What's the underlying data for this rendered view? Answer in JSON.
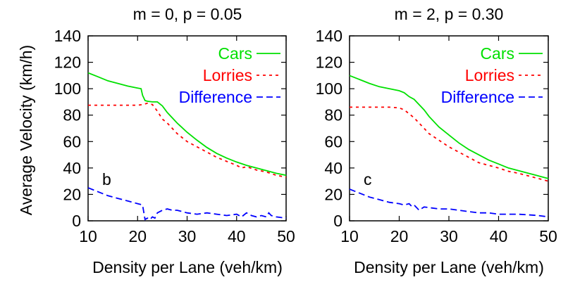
{
  "chart_data": [
    {
      "type": "line",
      "title": "m = 0, p = 0.05",
      "panel_label": "b",
      "xlabel": "Density per Lane (veh/km)",
      "ylabel": "Average Velocity (km/h)",
      "xlim": [
        10,
        50
      ],
      "ylim": [
        0,
        140
      ],
      "xticks": [
        "10",
        "20",
        "30",
        "40",
        "50"
      ],
      "yticks": [
        "0",
        "20",
        "40",
        "60",
        "80",
        "100",
        "120",
        "140"
      ],
      "grid": false,
      "legend_position": "top-right",
      "series": [
        {
          "name": "Cars",
          "color": "#00e000",
          "dash": "solid",
          "points": [
            [
              10,
              112
            ],
            [
              12,
              109
            ],
            [
              14,
              106
            ],
            [
              16,
              104
            ],
            [
              18,
              102
            ],
            [
              20,
              100.5
            ],
            [
              20.7,
              100
            ],
            [
              21,
              95
            ],
            [
              21.5,
              91
            ],
            [
              22,
              90.5
            ],
            [
              23,
              90
            ],
            [
              24,
              90
            ],
            [
              25,
              87
            ],
            [
              26,
              82
            ],
            [
              28,
              74
            ],
            [
              30,
              67
            ],
            [
              32,
              61
            ],
            [
              34,
              55.5
            ],
            [
              36,
              51
            ],
            [
              38,
              47.5
            ],
            [
              40,
              44.5
            ],
            [
              42,
              42
            ],
            [
              44,
              40
            ],
            [
              46,
              38
            ],
            [
              48,
              36
            ],
            [
              50,
              34.5
            ]
          ]
        },
        {
          "name": "Lorries",
          "color": "#ff0000",
          "dash": "dotted",
          "points": [
            [
              10,
              87.5
            ],
            [
              14,
              87.5
            ],
            [
              18,
              87.5
            ],
            [
              20,
              87.5
            ],
            [
              21,
              88
            ],
            [
              22,
              89
            ],
            [
              23,
              88
            ],
            [
              24,
              83
            ],
            [
              25,
              77
            ],
            [
              26,
              74
            ],
            [
              28,
              66
            ],
            [
              30,
              60
            ],
            [
              32,
              56
            ],
            [
              34,
              52
            ],
            [
              36,
              48
            ],
            [
              38,
              45
            ],
            [
              40,
              42
            ],
            [
              41,
              40
            ],
            [
              42,
              41
            ],
            [
              44,
              38.5
            ],
            [
              46,
              37
            ],
            [
              48,
              34.5
            ],
            [
              50,
              33
            ]
          ]
        },
        {
          "name": "Difference",
          "color": "#0000ff",
          "dash": "dashed",
          "points": [
            [
              10,
              25
            ],
            [
              12,
              22
            ],
            [
              14,
              19
            ],
            [
              16,
              17
            ],
            [
              18,
              15
            ],
            [
              20,
              13
            ],
            [
              21,
              12
            ],
            [
              21.5,
              1
            ],
            [
              22,
              2
            ],
            [
              22.5,
              1
            ],
            [
              23,
              3
            ],
            [
              23.5,
              2
            ],
            [
              24,
              6
            ],
            [
              25,
              8
            ],
            [
              26,
              9
            ],
            [
              27,
              8
            ],
            [
              28,
              8
            ],
            [
              30,
              6
            ],
            [
              32,
              5
            ],
            [
              34,
              6
            ],
            [
              36,
              5
            ],
            [
              38,
              4
            ],
            [
              40,
              5
            ],
            [
              41,
              3
            ],
            [
              42,
              6
            ],
            [
              43,
              4
            ],
            [
              44,
              3
            ],
            [
              45,
              4
            ],
            [
              46,
              3
            ],
            [
              46.5,
              6
            ],
            [
              47,
              4
            ],
            [
              48,
              3
            ],
            [
              50,
              2
            ]
          ]
        }
      ]
    },
    {
      "type": "line",
      "title": "m = 2, p = 0.30",
      "panel_label": "c",
      "xlabel": "Density per Lane (veh/km)",
      "ylabel": "",
      "xlim": [
        10,
        50
      ],
      "ylim": [
        0,
        140
      ],
      "xticks": [
        "10",
        "20",
        "30",
        "40",
        "50"
      ],
      "yticks": [
        "0",
        "20",
        "40",
        "60",
        "80",
        "100",
        "120",
        "140"
      ],
      "grid": false,
      "legend_position": "top-right",
      "series": [
        {
          "name": "Cars",
          "color": "#00e000",
          "dash": "solid",
          "points": [
            [
              10,
              110
            ],
            [
              12,
              107
            ],
            [
              14,
              104
            ],
            [
              16,
              101.5
            ],
            [
              18,
              100
            ],
            [
              20,
              98.5
            ],
            [
              21,
              97
            ],
            [
              22,
              94
            ],
            [
              23,
              92
            ],
            [
              24,
              88
            ],
            [
              25,
              84
            ],
            [
              26,
              79
            ],
            [
              28,
              71
            ],
            [
              30,
              65
            ],
            [
              32,
              59
            ],
            [
              34,
              54
            ],
            [
              36,
              50
            ],
            [
              38,
              46
            ],
            [
              40,
              43
            ],
            [
              42,
              40
            ],
            [
              44,
              38
            ],
            [
              46,
              36
            ],
            [
              48,
              34
            ],
            [
              50,
              32
            ]
          ]
        },
        {
          "name": "Lorries",
          "color": "#ff0000",
          "dash": "dotted",
          "points": [
            [
              10,
              86
            ],
            [
              14,
              86
            ],
            [
              18,
              86
            ],
            [
              20,
              85.5
            ],
            [
              21,
              84
            ],
            [
              22,
              81
            ],
            [
              23,
              78
            ],
            [
              24,
              74
            ],
            [
              25,
              70
            ],
            [
              26,
              66
            ],
            [
              28,
              61
            ],
            [
              30,
              56
            ],
            [
              32,
              52
            ],
            [
              34,
              48
            ],
            [
              36,
              44
            ],
            [
              38,
              42
            ],
            [
              40,
              40
            ],
            [
              42,
              37.5
            ],
            [
              44,
              36
            ],
            [
              46,
              34
            ],
            [
              48,
              32
            ],
            [
              50,
              30
            ]
          ]
        },
        {
          "name": "Difference",
          "color": "#0000ff",
          "dash": "dashed",
          "points": [
            [
              10,
              24
            ],
            [
              12,
              21
            ],
            [
              14,
              18
            ],
            [
              16,
              16
            ],
            [
              18,
              14
            ],
            [
              20,
              13
            ],
            [
              21,
              12
            ],
            [
              22,
              13
            ],
            [
              22.5,
              11
            ],
            [
              23,
              12
            ],
            [
              23.5,
              10
            ],
            [
              24,
              8
            ],
            [
              25,
              10.5
            ],
            [
              26,
              10
            ],
            [
              28,
              9
            ],
            [
              30,
              9
            ],
            [
              32,
              8
            ],
            [
              34,
              7
            ],
            [
              36,
              6
            ],
            [
              38,
              6
            ],
            [
              40,
              5
            ],
            [
              42,
              5
            ],
            [
              44,
              5
            ],
            [
              46,
              4.5
            ],
            [
              48,
              4
            ],
            [
              50,
              3
            ]
          ]
        }
      ]
    }
  ]
}
